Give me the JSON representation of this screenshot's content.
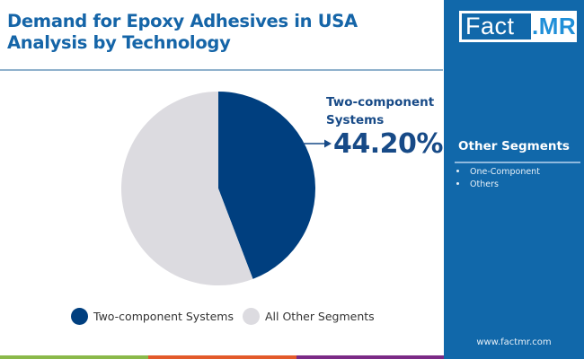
{
  "header": {
    "title_line1": "Demand for Epoxy Adhesives in USA",
    "title_line2": "Analysis by Technology"
  },
  "brand": {
    "logo_part1": "Fact",
    "logo_part2": ".MR",
    "website": "www.factmr.com"
  },
  "side_panel": {
    "heading": "Other Segments",
    "items": [
      "One-Component",
      "Others"
    ]
  },
  "callout": {
    "label_line1": "Two-component",
    "label_line2": "Systems",
    "value": "44.20%"
  },
  "legend": [
    {
      "label": "Two-component Systems",
      "color": "#003f7f"
    },
    {
      "label": "All Other Segments",
      "color": "#dcdbe0"
    }
  ],
  "colors": {
    "title": "#1565a8",
    "panel": "#1168aa",
    "primary_slice": "#003f7f",
    "other_slice": "#dcdbe0",
    "bar_green": "#8ab94a",
    "bar_orange": "#e35a2b",
    "bar_purple": "#7b2a86"
  },
  "chart_data": {
    "type": "pie",
    "title": "Demand for Epoxy Adhesives in USA Analysis by Technology",
    "categories": [
      "Two-component Systems",
      "All Other Segments"
    ],
    "values": [
      44.2,
      55.8
    ],
    "unit": "%",
    "colors": [
      "#003f7f",
      "#dcdbe0"
    ],
    "annotations": [
      {
        "label": "Two-component Systems",
        "text": "44.20%"
      }
    ],
    "legend_position": "bottom",
    "start_angle_deg": 0,
    "direction": "clockwise"
  }
}
